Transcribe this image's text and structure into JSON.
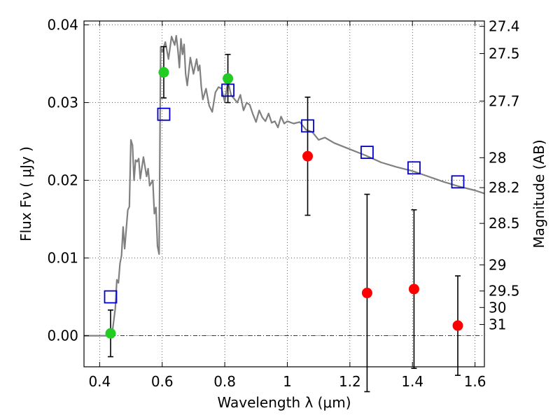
{
  "chart_data": {
    "type": "scatter",
    "title": "",
    "xlabel": "Wavelength  λ (μm)",
    "ylabel": "Flux  Fν  ( μJy )",
    "y2label": "Magnitude (AB)",
    "xlim": [
      0.35,
      1.63
    ],
    "ylim": [
      -0.004,
      0.0405
    ],
    "grid": true,
    "x_ticks": [
      {
        "value": 0.4,
        "label": "0.4"
      },
      {
        "value": 0.6,
        "label": "0.6"
      },
      {
        "value": 0.8,
        "label": "0.8"
      },
      {
        "value": 1.0,
        "label": "1"
      },
      {
        "value": 1.2,
        "label": "1.2"
      },
      {
        "value": 1.4,
        "label": "1.4"
      },
      {
        "value": 1.6,
        "label": "1.6"
      }
    ],
    "y_ticks": [
      {
        "value": 0.0,
        "label": "0.00"
      },
      {
        "value": 0.01,
        "label": "0.01"
      },
      {
        "value": 0.02,
        "label": "0.02"
      },
      {
        "value": 0.03,
        "label": "0.03"
      },
      {
        "value": 0.04,
        "label": "0.04"
      }
    ],
    "y2_ticks": [
      {
        "value": 27.4,
        "label": "27.4"
      },
      {
        "value": 27.5,
        "label": "27.5"
      },
      {
        "value": 27.7,
        "label": "27.7"
      },
      {
        "value": 28,
        "label": "28"
      },
      {
        "value": 28.2,
        "label": "28.2"
      },
      {
        "value": 28.5,
        "label": "28.5"
      },
      {
        "value": 29,
        "label": "29"
      },
      {
        "value": 29.5,
        "label": "29.5"
      },
      {
        "value": 30,
        "label": "30"
      },
      {
        "value": 31,
        "label": "31"
      }
    ],
    "reference_line": {
      "y": 0.0,
      "style": "dash-dot"
    },
    "sed_model": {
      "name": "model spectrum",
      "color": "#808080",
      "x": [
        0.35,
        0.42,
        0.44,
        0.45,
        0.455,
        0.46,
        0.465,
        0.47,
        0.475,
        0.48,
        0.49,
        0.495,
        0.5,
        0.505,
        0.51,
        0.515,
        0.52,
        0.525,
        0.53,
        0.54,
        0.55,
        0.555,
        0.56,
        0.57,
        0.575,
        0.58,
        0.585,
        0.59,
        0.595,
        0.6,
        0.61,
        0.62,
        0.63,
        0.64,
        0.645,
        0.65,
        0.655,
        0.66,
        0.665,
        0.67,
        0.675,
        0.68,
        0.69,
        0.7,
        0.71,
        0.715,
        0.72,
        0.725,
        0.73,
        0.74,
        0.75,
        0.76,
        0.77,
        0.78,
        0.79,
        0.8,
        0.81,
        0.82,
        0.83,
        0.84,
        0.85,
        0.86,
        0.87,
        0.88,
        0.89,
        0.9,
        0.91,
        0.92,
        0.93,
        0.94,
        0.95,
        0.96,
        0.97,
        0.98,
        0.99,
        1.0,
        1.02,
        1.04,
        1.06,
        1.08,
        1.1,
        1.12,
        1.15,
        1.2,
        1.25,
        1.3,
        1.35,
        1.4,
        1.45,
        1.5,
        1.55,
        1.6,
        1.63
      ],
      "y": [
        0.0,
        0.0,
        0.0003,
        0.0035,
        0.0072,
        0.0068,
        0.0093,
        0.0103,
        0.014,
        0.0112,
        0.0162,
        0.0166,
        0.0252,
        0.0245,
        0.02,
        0.0226,
        0.0224,
        0.0228,
        0.0202,
        0.023,
        0.0205,
        0.0215,
        0.0193,
        0.02,
        0.0157,
        0.0165,
        0.0115,
        0.0105,
        0.0372,
        0.0365,
        0.0378,
        0.0356,
        0.0385,
        0.0374,
        0.0386,
        0.0368,
        0.0345,
        0.0382,
        0.0362,
        0.0375,
        0.0337,
        0.0322,
        0.0358,
        0.0337,
        0.0356,
        0.0341,
        0.0348,
        0.032,
        0.0304,
        0.0318,
        0.0296,
        0.0288,
        0.0313,
        0.032,
        0.0318,
        0.0301,
        0.0328,
        0.031,
        0.0305,
        0.03,
        0.031,
        0.029,
        0.03,
        0.0297,
        0.0285,
        0.0275,
        0.029,
        0.0281,
        0.0276,
        0.0286,
        0.0274,
        0.0276,
        0.0268,
        0.0282,
        0.0273,
        0.0276,
        0.0273,
        0.0275,
        0.0265,
        0.0262,
        0.0252,
        0.0255,
        0.0248,
        0.024,
        0.0232,
        0.0223,
        0.0217,
        0.0212,
        0.0205,
        0.0198,
        0.0192,
        0.0187,
        0.0183
      ]
    },
    "series": [
      {
        "name": "model band flux",
        "marker": "open-square",
        "color": "#0000cc",
        "x": [
          0.435,
          0.605,
          0.81,
          1.065,
          1.255,
          1.405,
          1.545
        ],
        "values": [
          0.005,
          0.0285,
          0.0316,
          0.027,
          0.0236,
          0.0216,
          0.0198
        ]
      },
      {
        "name": "detections",
        "marker": "filled-circle",
        "color": "#22cc22",
        "x": [
          0.435,
          0.605,
          0.81
        ],
        "values": [
          0.0003,
          0.0339,
          0.0331
        ],
        "err": [
          0.003,
          0.0033,
          0.0031
        ]
      },
      {
        "name": "non-detections",
        "marker": "filled-circle",
        "color": "#ff0000",
        "x": [
          1.065,
          1.255,
          1.405,
          1.545
        ],
        "values": [
          0.0231,
          0.0055,
          0.006,
          0.0013
        ],
        "err": [
          0.0076,
          0.0127,
          0.0102,
          0.0064
        ]
      }
    ]
  }
}
